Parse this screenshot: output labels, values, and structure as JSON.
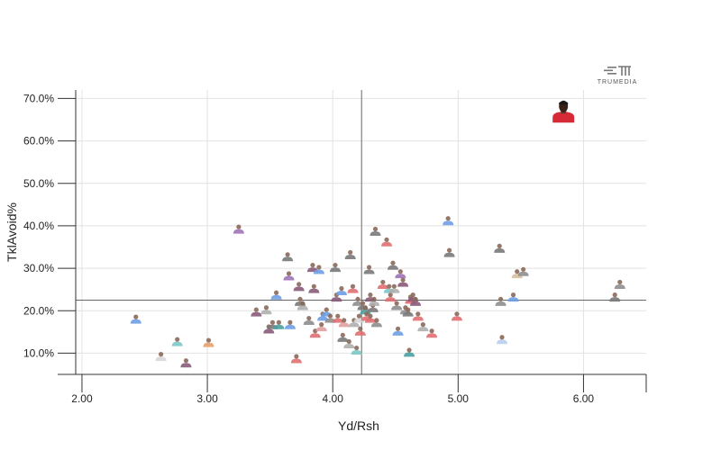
{
  "chart_data": {
    "type": "scatter",
    "xlabel": "Yd/Rsh",
    "ylabel": "TklAvoid%",
    "xlim": [
      1.95,
      6.5
    ],
    "ylim": [
      5,
      72
    ],
    "x_ticks": [
      "2.00",
      "3.00",
      "4.00",
      "5.00",
      "6.00"
    ],
    "y_ticks": [
      "10.0%",
      "20.0%",
      "30.0%",
      "40.0%",
      "50.0%",
      "60.0%",
      "70.0%"
    ],
    "grid": true,
    "reference_lines": {
      "x": 4.23,
      "y": 22.5
    },
    "brand_logo": "TRUMEDIA",
    "colors": {
      "highlight": "#d62b37",
      "marker_gray": "#8f8f8f",
      "marker_blue": "#6e9fe6",
      "marker_red": "#e06f72"
    },
    "highlight_point": {
      "x": 5.84,
      "y": 66.0
    },
    "points": [
      {
        "x": 2.43,
        "y": 17.8,
        "c": "#6e9fe6"
      },
      {
        "x": 2.63,
        "y": 9.0,
        "c": "#d8d8d8"
      },
      {
        "x": 2.76,
        "y": 12.5,
        "c": "#7fc8c8"
      },
      {
        "x": 2.83,
        "y": 7.5,
        "c": "#8a5a7a"
      },
      {
        "x": 3.01,
        "y": 12.3,
        "c": "#e8a070"
      },
      {
        "x": 3.25,
        "y": 39.0,
        "c": "#a074b8"
      },
      {
        "x": 3.39,
        "y": 19.5,
        "c": "#8a5a7a"
      },
      {
        "x": 3.47,
        "y": 20.0,
        "c": "#b0b0b0"
      },
      {
        "x": 3.49,
        "y": 15.5,
        "c": "#8a5a7a"
      },
      {
        "x": 3.52,
        "y": 16.5,
        "c": "#7a7a7a"
      },
      {
        "x": 3.55,
        "y": 23.5,
        "c": "#6e9fe6"
      },
      {
        "x": 3.57,
        "y": 16.5,
        "c": "#4aa0a0"
      },
      {
        "x": 3.64,
        "y": 32.5,
        "c": "#7a7a7a"
      },
      {
        "x": 3.65,
        "y": 28.0,
        "c": "#a074b8"
      },
      {
        "x": 3.66,
        "y": 16.5,
        "c": "#6e9fe6"
      },
      {
        "x": 3.71,
        "y": 8.5,
        "c": "#e06f72"
      },
      {
        "x": 3.73,
        "y": 25.5,
        "c": "#8a5a7a"
      },
      {
        "x": 3.74,
        "y": 22.0,
        "c": "#7a7a7a"
      },
      {
        "x": 3.76,
        "y": 21.0,
        "c": "#b0b0b0"
      },
      {
        "x": 3.81,
        "y": 17.5,
        "c": "#8f8f8f"
      },
      {
        "x": 3.84,
        "y": 30.0,
        "c": "#8a5a7a"
      },
      {
        "x": 3.85,
        "y": 25.0,
        "c": "#8a5a7a"
      },
      {
        "x": 3.86,
        "y": 14.5,
        "c": "#e06f72"
      },
      {
        "x": 3.89,
        "y": 29.5,
        "c": "#6e9fe6"
      },
      {
        "x": 3.91,
        "y": 16.0,
        "c": "#e0a0a0"
      },
      {
        "x": 3.92,
        "y": 18.5,
        "c": "#6e9fe6"
      },
      {
        "x": 3.95,
        "y": 19.5,
        "c": "#6e9fe6"
      },
      {
        "x": 3.98,
        "y": 18.0,
        "c": "#8f8f8f"
      },
      {
        "x": 4.02,
        "y": 30.0,
        "c": "#7a7a7a"
      },
      {
        "x": 4.03,
        "y": 23.0,
        "c": "#8a5a7a"
      },
      {
        "x": 4.04,
        "y": 18.0,
        "c": "#e06f72"
      },
      {
        "x": 4.07,
        "y": 24.5,
        "c": "#6e9fe6"
      },
      {
        "x": 4.08,
        "y": 13.5,
        "c": "#7a7a7a"
      },
      {
        "x": 4.09,
        "y": 17.0,
        "c": "#e0a0a0"
      },
      {
        "x": 4.13,
        "y": 12.0,
        "c": "#b0b0b0"
      },
      {
        "x": 4.14,
        "y": 33.0,
        "c": "#7a7a7a"
      },
      {
        "x": 4.16,
        "y": 25.0,
        "c": "#e06f72"
      },
      {
        "x": 4.17,
        "y": 17.0,
        "c": "#b0b0b0"
      },
      {
        "x": 4.19,
        "y": 10.5,
        "c": "#7fc8c8"
      },
      {
        "x": 4.2,
        "y": 22.0,
        "c": "#8f8f8f"
      },
      {
        "x": 4.21,
        "y": 18.0,
        "c": "#d8d8d8"
      },
      {
        "x": 4.22,
        "y": 15.0,
        "c": "#e06f72"
      },
      {
        "x": 4.24,
        "y": 21.0,
        "c": "#7a7a7a"
      },
      {
        "x": 4.26,
        "y": 20.0,
        "c": "#4aa0a0"
      },
      {
        "x": 4.27,
        "y": 18.5,
        "c": "#e06f72"
      },
      {
        "x": 4.29,
        "y": 29.5,
        "c": "#7a7a7a"
      },
      {
        "x": 4.3,
        "y": 23.0,
        "c": "#8a5a7a"
      },
      {
        "x": 4.3,
        "y": 18.0,
        "c": "#e06f72"
      },
      {
        "x": 4.32,
        "y": 20.5,
        "c": "#7a7a7a"
      },
      {
        "x": 4.33,
        "y": 22.0,
        "c": "#b0b0b0"
      },
      {
        "x": 4.34,
        "y": 38.5,
        "c": "#7a7a7a"
      },
      {
        "x": 4.35,
        "y": 17.0,
        "c": "#8f8f8f"
      },
      {
        "x": 4.4,
        "y": 26.0,
        "c": "#e06f72"
      },
      {
        "x": 4.43,
        "y": 36.0,
        "c": "#e06f72"
      },
      {
        "x": 4.45,
        "y": 25.0,
        "c": "#7fc8c8"
      },
      {
        "x": 4.46,
        "y": 23.0,
        "c": "#e06f72"
      },
      {
        "x": 4.48,
        "y": 30.5,
        "c": "#7a7a7a"
      },
      {
        "x": 4.49,
        "y": 25.0,
        "c": "#b0b0b0"
      },
      {
        "x": 4.51,
        "y": 21.0,
        "c": "#8f8f8f"
      },
      {
        "x": 4.52,
        "y": 15.0,
        "c": "#6e9fe6"
      },
      {
        "x": 4.54,
        "y": 28.5,
        "c": "#a074b8"
      },
      {
        "x": 4.56,
        "y": 26.5,
        "c": "#8a5a7a"
      },
      {
        "x": 4.58,
        "y": 20.0,
        "c": "#8f8f8f"
      },
      {
        "x": 4.6,
        "y": 19.5,
        "c": "#7a7a7a"
      },
      {
        "x": 4.61,
        "y": 10.0,
        "c": "#4aa0a0"
      },
      {
        "x": 4.62,
        "y": 22.5,
        "c": "#e06f72"
      },
      {
        "x": 4.64,
        "y": 23.0,
        "c": "#8a5a7a"
      },
      {
        "x": 4.66,
        "y": 22.0,
        "c": "#8a5a7a"
      },
      {
        "x": 4.68,
        "y": 18.5,
        "c": "#e06f72"
      },
      {
        "x": 4.72,
        "y": 16.0,
        "c": "#b0b0b0"
      },
      {
        "x": 4.79,
        "y": 14.5,
        "c": "#e06f72"
      },
      {
        "x": 4.92,
        "y": 41.0,
        "c": "#6e9fe6"
      },
      {
        "x": 4.93,
        "y": 33.5,
        "c": "#7a7a7a"
      },
      {
        "x": 4.99,
        "y": 18.5,
        "c": "#e06f72"
      },
      {
        "x": 5.33,
        "y": 34.5,
        "c": "#7a7a7a"
      },
      {
        "x": 5.34,
        "y": 22.0,
        "c": "#8f8f8f"
      },
      {
        "x": 5.35,
        "y": 13.0,
        "c": "#b8d0f0"
      },
      {
        "x": 5.44,
        "y": 23.0,
        "c": "#6e9fe6"
      },
      {
        "x": 5.47,
        "y": 28.5,
        "c": "#d8c0a0"
      },
      {
        "x": 5.52,
        "y": 29.0,
        "c": "#8f8f8f"
      },
      {
        "x": 6.25,
        "y": 23.0,
        "c": "#7a7a7a"
      },
      {
        "x": 6.29,
        "y": 26.0,
        "c": "#8f8f8f"
      }
    ]
  }
}
